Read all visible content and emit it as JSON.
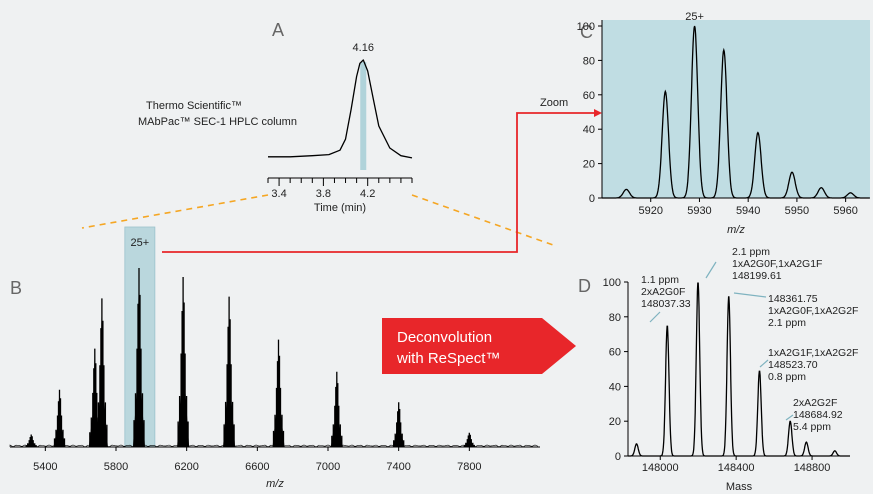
{
  "panel_letters": {
    "a": "A",
    "b": "B",
    "c": "C",
    "d": "D"
  },
  "panel_a": {
    "column_line1": "Thermo Scientific™",
    "column_line2": "MAbPac™ SEC-1 HPLC column",
    "peak_label": "4.16"
  },
  "zoom_label": "Zoom",
  "highlight_label": "25+",
  "deconv_line1": "Deconvolution",
  "deconv_line2": "with ReSpect™",
  "colors": {
    "background": "#eff1f2",
    "highlight": "#a9cfd7",
    "panel_c_bg": "#c0dde3",
    "arrow_red": "#e8262a",
    "dash_orange": "#f5a623",
    "trace": "#000000"
  },
  "chart_data": [
    {
      "id": "A",
      "type": "line",
      "xlabel": "Time (min)",
      "ylabel": "",
      "xlim": [
        3.3,
        4.6
      ],
      "ticks": [
        3.4,
        3.8,
        4.2
      ],
      "tick_labels": [
        "3.4",
        "3.8",
        "4.2"
      ],
      "x": [
        3.3,
        3.5,
        3.7,
        3.85,
        3.95,
        4.0,
        4.05,
        4.1,
        4.13,
        4.16,
        4.2,
        4.25,
        4.3,
        4.4,
        4.5,
        4.6
      ],
      "y": [
        12,
        12,
        13,
        14,
        18,
        28,
        55,
        85,
        97,
        100,
        90,
        65,
        40,
        20,
        13,
        11
      ],
      "peak": {
        "x": 4.16,
        "label": "4.16"
      }
    },
    {
      "id": "B",
      "type": "line",
      "xlabel": "m/z",
      "ylabel": "",
      "xlim": [
        5200,
        8200
      ],
      "ticks": [
        5400,
        5800,
        6200,
        6600,
        7000,
        7400,
        7800
      ],
      "tick_labels": [
        "5400",
        "5800",
        "6200",
        "6600",
        "7000",
        "7400",
        "7800"
      ],
      "peaks": [
        {
          "x": 5320,
          "y": 7
        },
        {
          "x": 5480,
          "y": 32
        },
        {
          "x": 5680,
          "y": 55
        },
        {
          "x": 5720,
          "y": 83
        },
        {
          "x": 5930,
          "y": 100
        },
        {
          "x": 6180,
          "y": 95
        },
        {
          "x": 6440,
          "y": 84
        },
        {
          "x": 6720,
          "y": 60
        },
        {
          "x": 7050,
          "y": 42
        },
        {
          "x": 7400,
          "y": 25
        },
        {
          "x": 7800,
          "y": 8
        }
      ],
      "highlight": {
        "x_range": [
          5850,
          6020
        ],
        "label": "25+"
      }
    },
    {
      "id": "C",
      "type": "line",
      "xlabel": "m/z",
      "ylabel": "",
      "xlim": [
        5910,
        5965
      ],
      "ylim": [
        0,
        100
      ],
      "xticks": [
        5920,
        5930,
        5940,
        5950,
        5960
      ],
      "xtick_labels": [
        "5920",
        "5930",
        "5940",
        "5950",
        "5960"
      ],
      "yticks": [
        0,
        20,
        40,
        60,
        80,
        100
      ],
      "ytick_labels": [
        "0",
        "20",
        "40",
        "60",
        "80",
        "100"
      ],
      "peaks": [
        {
          "x": 5915,
          "y": 5
        },
        {
          "x": 5923,
          "y": 62
        },
        {
          "x": 5929,
          "y": 100
        },
        {
          "x": 5935,
          "y": 86
        },
        {
          "x": 5942,
          "y": 38
        },
        {
          "x": 5949,
          "y": 15
        },
        {
          "x": 5955,
          "y": 6
        },
        {
          "x": 5961,
          "y": 3
        }
      ],
      "annotation": "25+"
    },
    {
      "id": "D",
      "type": "line",
      "xlabel": "Mass",
      "ylabel": "",
      "xlim": [
        147830,
        149000
      ],
      "ylim": [
        0,
        100
      ],
      "xticks": [
        148000,
        148400,
        148800
      ],
      "xtick_labels": [
        "148000",
        "148400",
        "148800"
      ],
      "yticks": [
        0,
        20,
        40,
        60,
        80,
        100
      ],
      "ytick_labels": [
        "0",
        "20",
        "40",
        "60",
        "80",
        "100"
      ],
      "peaks": [
        {
          "x": 147875,
          "y": 7
        },
        {
          "x": 148037,
          "y": 75
        },
        {
          "x": 148199,
          "y": 100
        },
        {
          "x": 148361,
          "y": 92
        },
        {
          "x": 148523,
          "y": 49
        },
        {
          "x": 148685,
          "y": 20
        },
        {
          "x": 148770,
          "y": 8
        },
        {
          "x": 148920,
          "y": 3
        }
      ],
      "annotations": [
        {
          "lines": [
            "1.1 ppm",
            "2xA2G0F",
            "148037.33"
          ]
        },
        {
          "lines": [
            "2.1 ppm",
            "1xA2G0F,1xA2G1F",
            "148199.61"
          ]
        },
        {
          "lines": [
            "148361.75",
            "1xA2G0F,1xA2G2F",
            "2.1 ppm"
          ]
        },
        {
          "lines": [
            "1xA2G1F,1xA2G2F",
            "148523.70",
            "0.8 ppm"
          ]
        },
        {
          "lines": [
            "2xA2G2F",
            "148684.92",
            "5.4 ppm"
          ]
        }
      ]
    }
  ]
}
